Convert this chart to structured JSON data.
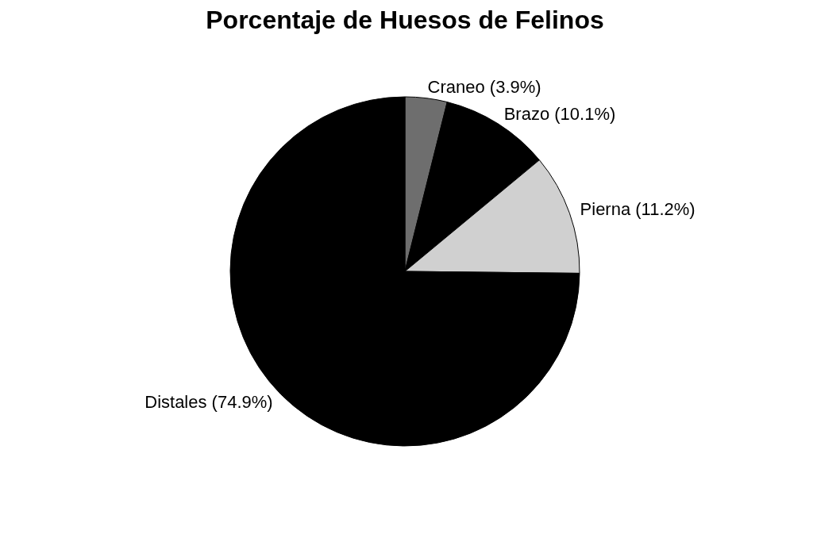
{
  "chart_data": {
    "type": "pie",
    "title": "Porcentaje de Huesos de Felinos",
    "categories": [
      "Craneo",
      "Brazo",
      "Pierna",
      "Distales"
    ],
    "values": [
      3.9,
      10.1,
      11.2,
      74.9
    ],
    "colors": [
      "#6e6e6e",
      "#000000",
      "#d0d0d0",
      "#000000"
    ],
    "value_labels": [
      "(3.9%)",
      "(10.1%)",
      "(11.2%)",
      "(74.9%)"
    ],
    "legend": false
  }
}
